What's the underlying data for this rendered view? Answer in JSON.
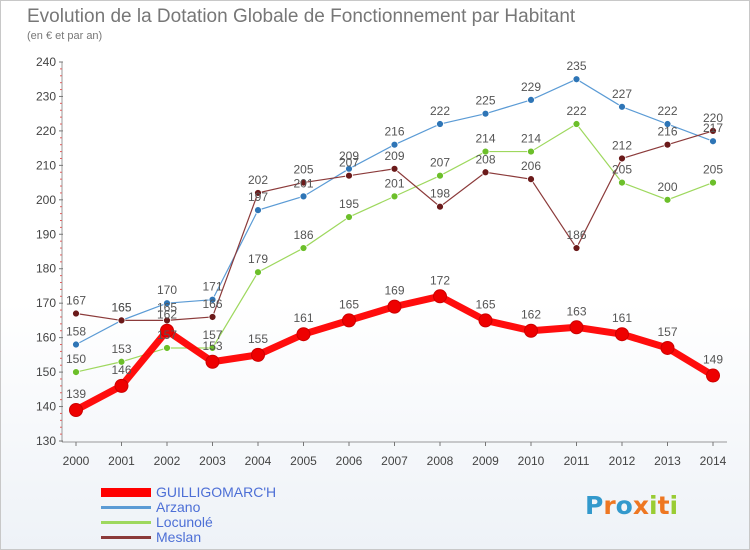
{
  "title": "Evolution de la Dotation Globale de Fonctionnement par Habitant",
  "subtitle": "(en € et par an)",
  "logo": {
    "letters": [
      {
        "ch": "P",
        "color": "#3399cc"
      },
      {
        "ch": "r",
        "color": "#ee7722"
      },
      {
        "ch": "o",
        "color": "#3399cc"
      },
      {
        "ch": "x",
        "color": "#ee7722"
      },
      {
        "ch": "i",
        "color": "#99cc33"
      },
      {
        "ch": "t",
        "color": "#ee7722"
      },
      {
        "ch": "i",
        "color": "#99cc33"
      }
    ]
  },
  "chart_data": {
    "type": "line",
    "title": "Evolution de la Dotation Globale de Fonctionnement par Habitant",
    "subtitle": "(en € et par an)",
    "x": [
      "2000",
      "2001",
      "2002",
      "2003",
      "2004",
      "2005",
      "2006",
      "2007",
      "2008",
      "2009",
      "2010",
      "2011",
      "2012",
      "2013",
      "2014"
    ],
    "ylim": [
      130,
      240
    ],
    "yticks": [
      130,
      140,
      150,
      160,
      170,
      180,
      190,
      200,
      210,
      220,
      230,
      240
    ],
    "grid": false,
    "legend": "bottom-left",
    "series": [
      {
        "name": "Arzano",
        "color": "#5b9bd5",
        "marker": "#2e75b6",
        "width": 1.2,
        "values": [
          158,
          165,
          170,
          171,
          197,
          201,
          209,
          216,
          222,
          225,
          229,
          235,
          227,
          222,
          217
        ]
      },
      {
        "name": "Locunolé",
        "color": "#9ed85e",
        "marker": "#6cbf2a",
        "width": 1.2,
        "values": [
          150,
          153,
          157,
          157,
          179,
          186,
          195,
          201,
          207,
          214,
          214,
          222,
          205,
          200,
          205
        ]
      },
      {
        "name": "Meslan",
        "color": "#8b3a3a",
        "marker": "#6b1a1a",
        "width": 1.2,
        "values": [
          167,
          165,
          165,
          166,
          202,
          205,
          207,
          209,
          198,
          208,
          206,
          186,
          212,
          216,
          220
        ]
      },
      {
        "name": "GUILLIGOMARC'H",
        "color": "#ff0000",
        "marker": "#ee0000",
        "width": 7,
        "values": [
          139,
          146,
          162,
          153,
          155,
          161,
          165,
          169,
          172,
          165,
          162,
          163,
          161,
          157,
          149
        ]
      }
    ],
    "labels": [
      [
        "158",
        "165",
        "170",
        "171",
        "197",
        "201",
        "209",
        "216",
        "222",
        "225",
        "229",
        "235",
        "227",
        "222",
        "217"
      ],
      [
        "150",
        "153",
        "157",
        "157",
        "179",
        "186",
        "195",
        "201",
        "207",
        "214",
        "214",
        "222",
        "205",
        "200",
        "205"
      ],
      [
        "167",
        "165",
        "165",
        "166",
        "202",
        "205",
        "207",
        "209",
        "198",
        "208",
        "206",
        "186",
        "212",
        "216",
        "220"
      ],
      [
        "139",
        "146",
        "162",
        "153",
        "155",
        "161",
        "165",
        "169",
        "172",
        "165",
        "162",
        "163",
        "161",
        "157",
        "149"
      ]
    ]
  }
}
